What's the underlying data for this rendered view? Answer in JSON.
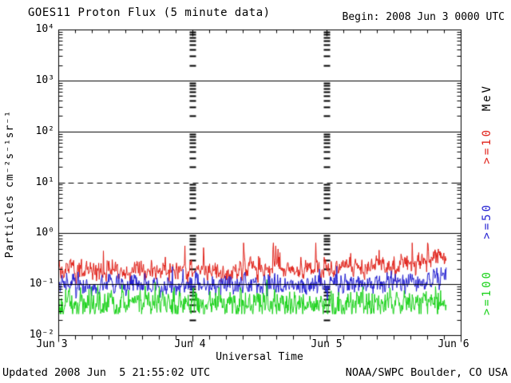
{
  "header": {
    "title": "GOES11 Proton Flux (5 minute data)",
    "begin_label": "Begin: 2008 Jun 3 0000 UTC"
  },
  "footer": {
    "updated": "Updated 2008 Jun  5 21:55:02 UTC",
    "credit": "NOAA/SWPC Boulder, CO USA"
  },
  "chart_data": {
    "type": "line",
    "title": "GOES11 Proton Flux (5 minute data)",
    "xlabel": "Universal Time",
    "ylabel": "Particles cm⁻²s⁻¹sr⁻¹",
    "right_axis_label": "MeV",
    "y_scale": "log",
    "ylim_exponents": [
      -2,
      4
    ],
    "y_tick_labels": [
      "10⁴",
      "10³",
      "10²",
      "10¹",
      "10⁰",
      "10⁻¹",
      "10⁻²"
    ],
    "x_tick_labels": [
      "Jun 3",
      "Jun 4",
      "Jun 5",
      "Jun 6"
    ],
    "x_range": "2008 Jun 3 0000 UTC to 2008 Jun 6 0000 UTC",
    "x_minor_tick_hours": 3,
    "cadence_minutes": 5,
    "data_end_fraction": 0.965,
    "grid": {
      "solid_hlines_at": [
        1000,
        100,
        1,
        0.1
      ],
      "dashed_hline_at": 10,
      "vertical_day_columns_at_days": [
        1,
        2
      ]
    },
    "legend_position": "right",
    "series": [
      {
        "name": ">=10",
        "unit": "MeV",
        "color": "#e12119",
        "typical_flux": 0.19,
        "band": [
          0.12,
          0.35
        ],
        "peak": 0.65,
        "profile_6h_flux": [
          0.2,
          0.19,
          0.18,
          0.2,
          0.19,
          0.18,
          0.2,
          0.19,
          0.2,
          0.21,
          0.22,
          0.28,
          0.5
        ],
        "sigma_log10": 0.09,
        "spike_prob": 0.02,
        "spike_log10": 0.4,
        "floor": 0.105,
        "cap": 0.66,
        "seed": 2008011
      },
      {
        "name": ">=50",
        "unit": "MeV",
        "color": "#2421d2",
        "typical_flux": 0.1,
        "band": [
          0.06,
          0.18
        ],
        "peak": 0.22,
        "profile_6h_flux": [
          0.095,
          0.09,
          0.1,
          0.095,
          0.09,
          0.1,
          0.1,
          0.095,
          0.1,
          0.105,
          0.11,
          0.12,
          0.16
        ],
        "sigma_log10": 0.095,
        "spike_prob": 0.01,
        "spike_log10": 0.26,
        "floor": 0.046,
        "cap": 0.23,
        "seed": 2008050
      },
      {
        "name": ">=100",
        "unit": "MeV",
        "color": "#19d219",
        "typical_flux": 0.042,
        "band": [
          0.027,
          0.09
        ],
        "peak": 0.12,
        "profile_6h_flux": [
          0.042,
          0.04,
          0.043,
          0.041,
          0.04,
          0.042,
          0.043,
          0.041,
          0.042,
          0.043,
          0.044,
          0.046,
          0.05
        ],
        "sigma_log10": 0.13,
        "spike_prob": 0.008,
        "spike_log10": 0.28,
        "floor": 0.0265,
        "cap": 0.125,
        "seed": 2008100
      }
    ]
  }
}
